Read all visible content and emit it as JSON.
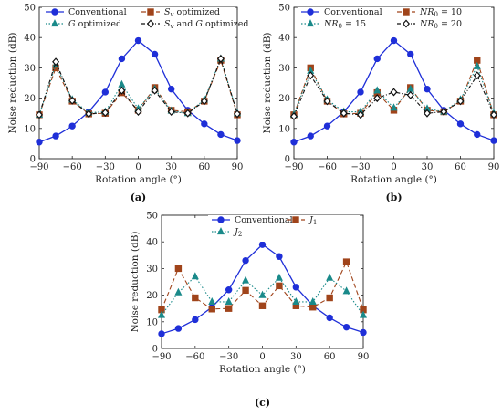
{
  "chart_data": [
    {
      "type": "line",
      "panel_label": "(a)",
      "xlabel": "Rotation angle (°)",
      "ylabel": "Noise reduction (dB)",
      "xlim": [
        -90,
        90
      ],
      "ylim": [
        0,
        50
      ],
      "xticks": [
        "−90",
        "−60",
        "−30",
        "0",
        "30",
        "60",
        "90"
      ],
      "yticks": [
        "0",
        "10",
        "20",
        "30",
        "40",
        "50"
      ],
      "x": [
        -90,
        -75,
        -60,
        -45,
        -30,
        -15,
        0,
        15,
        30,
        45,
        60,
        75,
        90
      ],
      "legend": "top-inside, two columns",
      "series": [
        {
          "name": "Conventional",
          "color": "#1f2fd8",
          "marker": "circle",
          "dash": "solid",
          "values": [
            5.5,
            7.5,
            10.8,
            15.5,
            22,
            33,
            39,
            34.5,
            23,
            16,
            11.5,
            8,
            6
          ]
        },
        {
          "name": "Sv optimized",
          "color": "#a0441b",
          "marker": "square",
          "dash": "dashed",
          "values": [
            14.5,
            30,
            19,
            14.8,
            15,
            21.8,
            16,
            23.5,
            16,
            15.5,
            19,
            32.5,
            14.5
          ]
        },
        {
          "name": "G optimized",
          "color": "#1a8a8a",
          "marker": "triangle",
          "dash": "dotted",
          "values": [
            14.5,
            31,
            19.5,
            15.2,
            15.5,
            24.5,
            16.5,
            23,
            15.8,
            15,
            19.5,
            33,
            15
          ]
        },
        {
          "name": "Sv and G optimized",
          "color": "#111111",
          "marker": "diamond",
          "dash": "dashdot",
          "values": [
            14.5,
            32,
            19.2,
            14.8,
            15.2,
            22.5,
            15.5,
            22.5,
            15.5,
            15,
            19,
            33,
            14.8
          ]
        }
      ]
    },
    {
      "type": "line",
      "panel_label": "(b)",
      "xlabel": "Rotation angle (°)",
      "ylabel": "Noise reduction (dB)",
      "xlim": [
        -90,
        90
      ],
      "ylim": [
        0,
        50
      ],
      "xticks": [
        "−90",
        "−60",
        "−30",
        "0",
        "30",
        "60",
        "90"
      ],
      "yticks": [
        "0",
        "10",
        "20",
        "30",
        "40",
        "50"
      ],
      "x": [
        -90,
        -75,
        -60,
        -45,
        -30,
        -15,
        0,
        15,
        30,
        45,
        60,
        75,
        90
      ],
      "legend": "top-inside, two columns",
      "series": [
        {
          "name": "Conventional",
          "color": "#1f2fd8",
          "marker": "circle",
          "dash": "solid",
          "values": [
            5.5,
            7.5,
            10.8,
            15.5,
            22,
            33,
            39,
            34.5,
            23,
            16,
            11.5,
            8,
            6
          ]
        },
        {
          "name": "NR0 = 10",
          "color": "#a0441b",
          "marker": "square",
          "dash": "dashed",
          "values": [
            14.5,
            30,
            19,
            14.8,
            15,
            21.8,
            16,
            23.5,
            16,
            15.5,
            19,
            32.5,
            14.5
          ]
        },
        {
          "name": "NR0 = 15",
          "color": "#1a8a8a",
          "marker": "triangle",
          "dash": "dotted",
          "values": [
            14.5,
            29,
            19.5,
            15.5,
            15.5,
            22.5,
            16.8,
            23,
            16.5,
            15.5,
            19.5,
            30.5,
            15
          ]
        },
        {
          "name": "NR0 = 20",
          "color": "#111111",
          "marker": "diamond",
          "dash": "dashdot",
          "values": [
            14,
            27.5,
            19,
            15,
            14.5,
            20,
            22,
            21,
            15,
            15.5,
            19,
            27.5,
            14.5
          ]
        }
      ]
    },
    {
      "type": "line",
      "panel_label": "(c)",
      "xlabel": "Rotation angle (°)",
      "ylabel": "Noise reduction (dB)",
      "xlim": [
        -90,
        90
      ],
      "ylim": [
        0,
        50
      ],
      "xticks": [
        "−90",
        "−60",
        "−30",
        "0",
        "30",
        "60",
        "90"
      ],
      "yticks": [
        "0",
        "10",
        "20",
        "30",
        "40",
        "50"
      ],
      "x": [
        -90,
        -75,
        -60,
        -45,
        -30,
        -15,
        0,
        15,
        30,
        45,
        60,
        75,
        90
      ],
      "legend": "top-inside, two columns",
      "series": [
        {
          "name": "Conventional",
          "color": "#1f2fd8",
          "marker": "circle",
          "dash": "solid",
          "values": [
            5.5,
            7.5,
            10.8,
            15.5,
            22,
            33,
            39,
            34.5,
            23,
            16,
            11.5,
            8,
            6
          ]
        },
        {
          "name": "J1",
          "color": "#a0441b",
          "marker": "square",
          "dash": "dashed",
          "values": [
            14.5,
            30,
            19,
            14.8,
            15,
            21.8,
            16,
            23.5,
            16,
            15.5,
            19,
            32.5,
            14.5
          ]
        },
        {
          "name": "J2",
          "color": "#1a8a8a",
          "marker": "triangle",
          "dash": "dotted",
          "values": [
            12.5,
            21,
            27,
            17.5,
            17.5,
            25.5,
            20,
            26.5,
            17.5,
            17.5,
            26.5,
            21.5,
            12.5
          ]
        }
      ]
    }
  ]
}
